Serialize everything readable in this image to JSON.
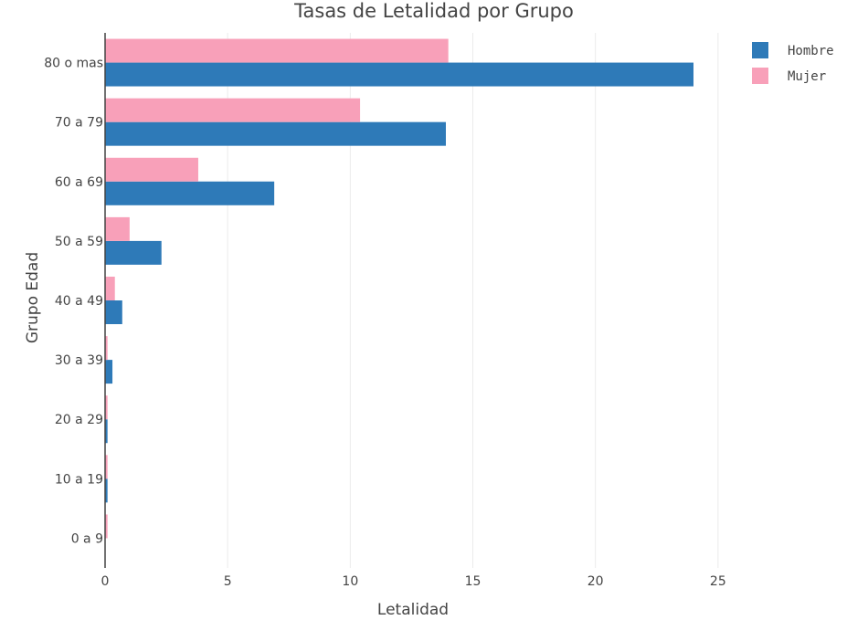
{
  "chart_data": {
    "type": "bar",
    "orientation": "horizontal",
    "title": "Tasas de Letalidad por Grupo",
    "xlabel": "Letalidad",
    "ylabel": "Grupo Edad",
    "categories": [
      "0 a 9",
      "10 a 19",
      "20 a 29",
      "30 a 39",
      "40 a 49",
      "50 a 59",
      "60 a 69",
      "70 a 79",
      "80 o mas"
    ],
    "series": [
      {
        "name": "Hombre",
        "color": "#2e7ab8",
        "values": [
          0.0,
          0.1,
          0.1,
          0.3,
          0.7,
          2.3,
          6.9,
          13.9,
          24.0
        ]
      },
      {
        "name": "Mujer",
        "color": "#f8a0b9",
        "values": [
          0.1,
          0.1,
          0.1,
          0.1,
          0.4,
          1.0,
          3.8,
          10.4,
          14.0
        ]
      }
    ],
    "xlim": [
      0,
      30
    ],
    "xticks": [
      0,
      5,
      10,
      15,
      20,
      25
    ],
    "grid": true,
    "legend": "top-right"
  }
}
